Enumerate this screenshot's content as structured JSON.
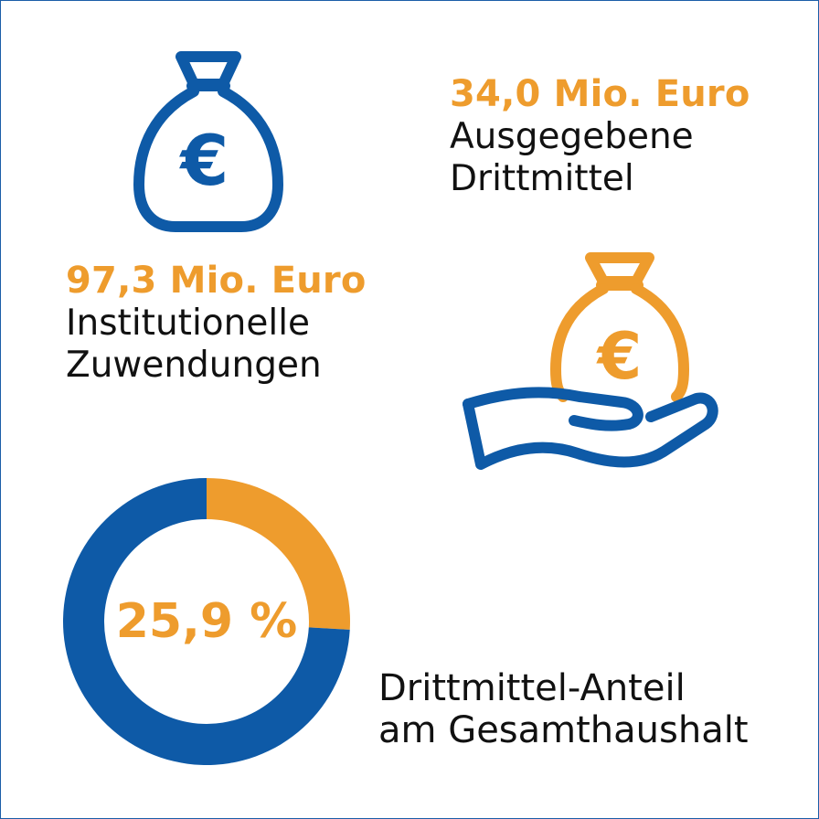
{
  "colors": {
    "blue": "#0e5aa7",
    "orange": "#ee9c2d",
    "text": "#111111"
  },
  "icons": {
    "money_bag": "money-bag-euro-icon",
    "hand_money": "hand-money-bag-euro-icon",
    "euro_symbol": "€"
  },
  "institutional": {
    "value": "97,3 Mio. Euro",
    "label_line1": "Institutionelle",
    "label_line2": "Zuwendungen"
  },
  "thirdparty": {
    "value": "34,0 Mio. Euro",
    "label_line1": "Ausgegebene",
    "label_line2": "Drittmittel"
  },
  "share": {
    "label_line1": "Drittmittel-Anteil",
    "label_line2": "am Gesamthaushalt"
  },
  "chart_data": {
    "type": "pie",
    "title": "",
    "center_label": "25,9 %",
    "slices": [
      {
        "value": 25.9,
        "color": "#ee9c2d"
      },
      {
        "value": 74.1,
        "color": "#0e5aa7"
      }
    ]
  }
}
